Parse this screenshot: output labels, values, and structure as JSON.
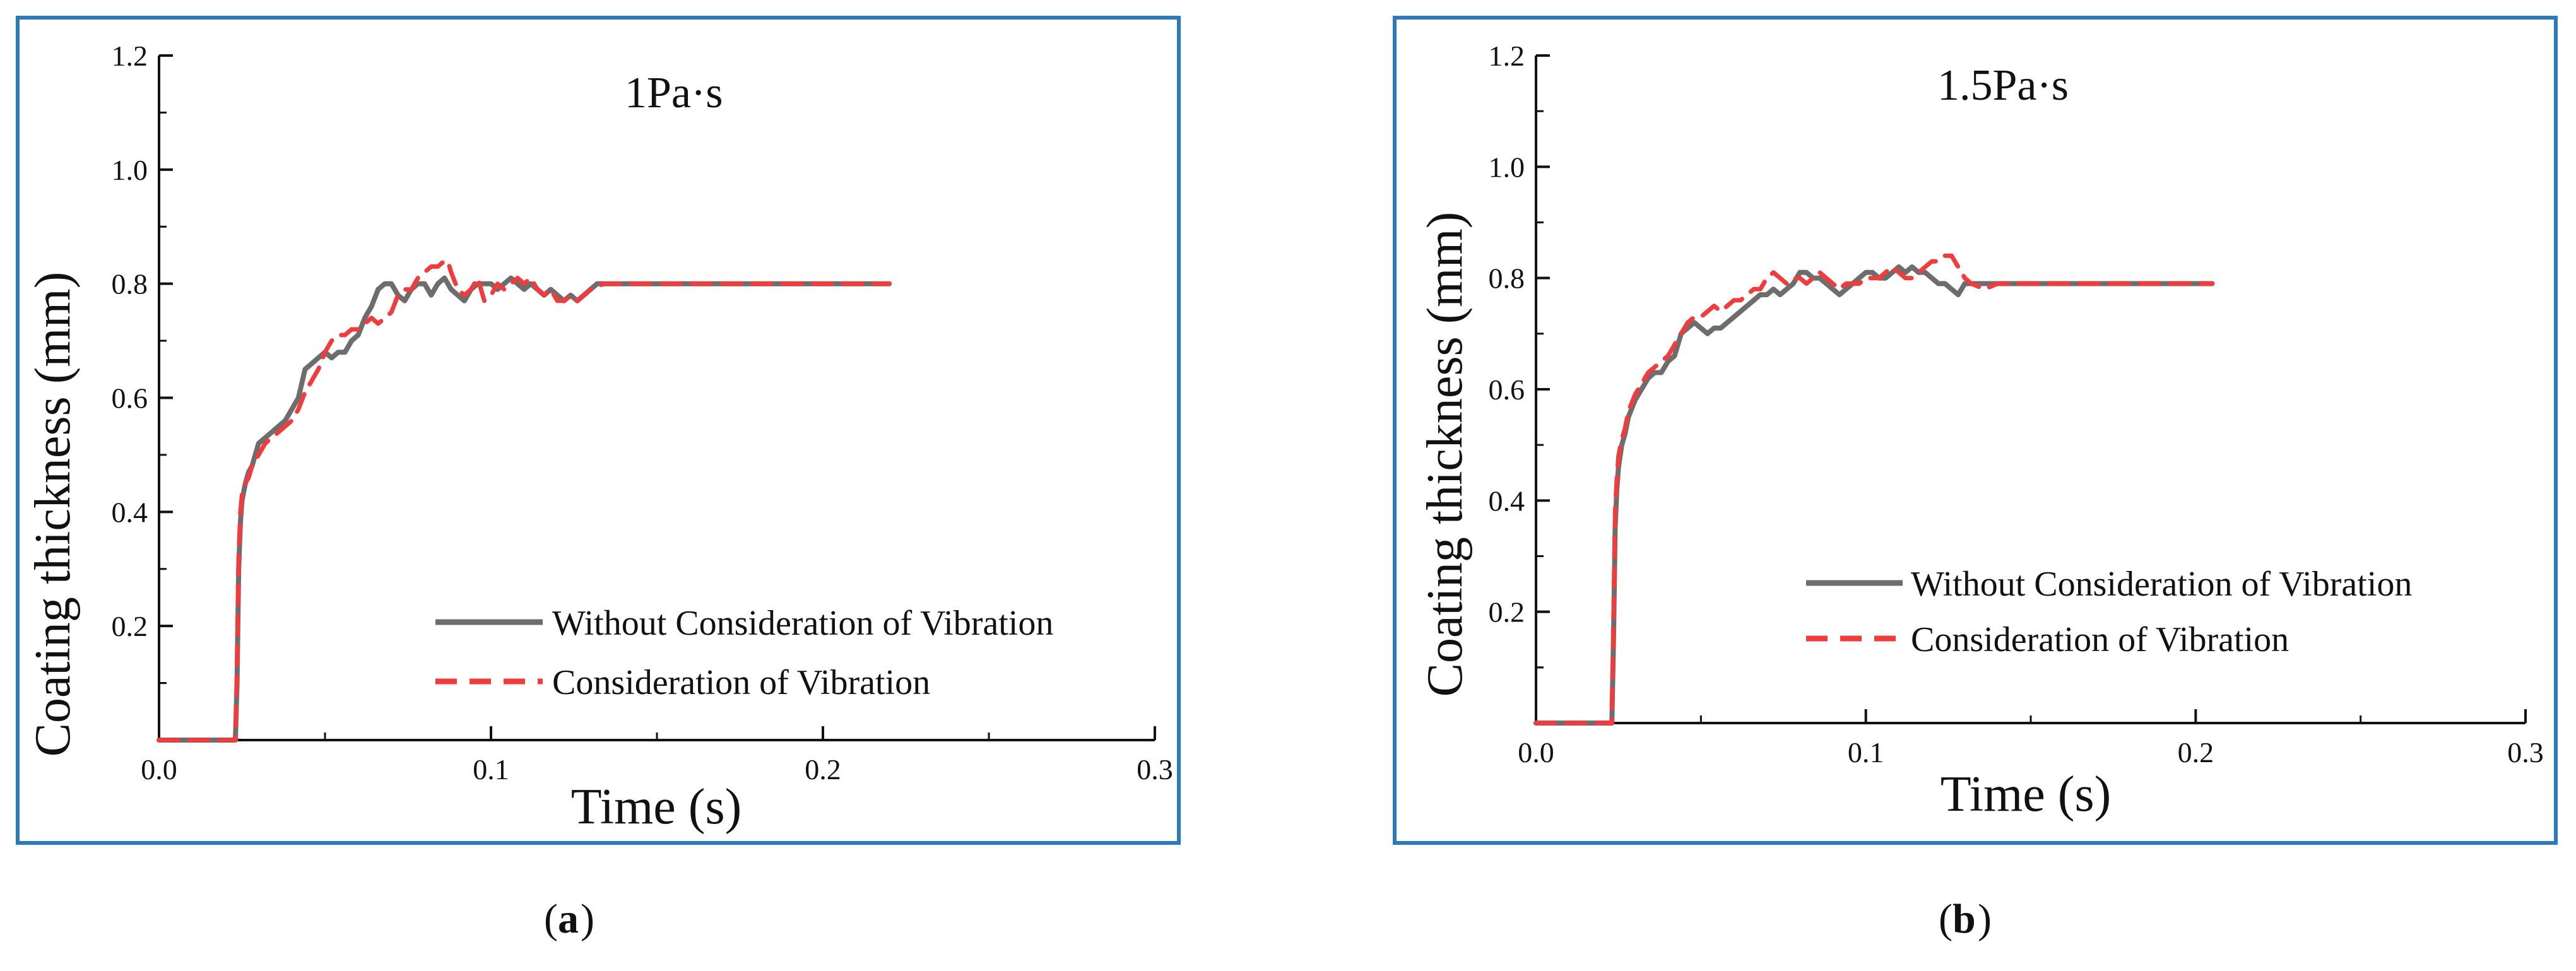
{
  "chart_data": [
    {
      "type": "line",
      "panel_label": "a",
      "title": "1Pa·s",
      "xlabel": "Time (s)",
      "ylabel": "Coating thickness (mm)",
      "xlim": [
        0,
        0.3
      ],
      "ylim": [
        0,
        1.2
      ],
      "xticks": [
        0.0,
        0.1,
        0.2,
        0.3
      ],
      "xtick_labels": [
        "0.0",
        "0.1",
        "0.2",
        "0.3"
      ],
      "yticks": [
        0.2,
        0.4,
        0.6,
        0.8,
        1.0,
        1.2
      ],
      "ytick_labels": [
        "0.2",
        "0.4",
        "0.6",
        "0.8",
        "1.0",
        "1.2"
      ],
      "grid": false,
      "legend_position": "bottom-right",
      "series": [
        {
          "name": "Without Consideration of Vibration",
          "color": "#6d6d6d",
          "style": "solid",
          "x": [
            0.0,
            0.023,
            0.0235,
            0.024,
            0.0245,
            0.025,
            0.026,
            0.027,
            0.028,
            0.029,
            0.03,
            0.032,
            0.034,
            0.036,
            0.038,
            0.04,
            0.042,
            0.044,
            0.046,
            0.048,
            0.05,
            0.052,
            0.054,
            0.056,
            0.058,
            0.06,
            0.062,
            0.064,
            0.066,
            0.068,
            0.07,
            0.072,
            0.074,
            0.076,
            0.078,
            0.08,
            0.082,
            0.084,
            0.086,
            0.088,
            0.09,
            0.092,
            0.094,
            0.096,
            0.098,
            0.1,
            0.102,
            0.104,
            0.106,
            0.108,
            0.11,
            0.112,
            0.114,
            0.116,
            0.118,
            0.12,
            0.122,
            0.124,
            0.126,
            0.128,
            0.13,
            0.132,
            0.134,
            0.136,
            0.14,
            0.145,
            0.15,
            0.16,
            0.17,
            0.18,
            0.19,
            0.2,
            0.21,
            0.22
          ],
          "y": [
            0.0,
            0.0,
            0.1,
            0.3,
            0.38,
            0.42,
            0.45,
            0.47,
            0.48,
            0.5,
            0.52,
            0.53,
            0.54,
            0.55,
            0.56,
            0.58,
            0.6,
            0.65,
            0.66,
            0.67,
            0.68,
            0.67,
            0.68,
            0.68,
            0.7,
            0.71,
            0.74,
            0.76,
            0.79,
            0.8,
            0.8,
            0.78,
            0.77,
            0.79,
            0.8,
            0.8,
            0.78,
            0.8,
            0.81,
            0.79,
            0.78,
            0.77,
            0.79,
            0.8,
            0.8,
            0.8,
            0.79,
            0.8,
            0.81,
            0.8,
            0.79,
            0.8,
            0.79,
            0.78,
            0.79,
            0.78,
            0.77,
            0.78,
            0.77,
            0.78,
            0.79,
            0.8,
            0.8,
            0.8,
            0.8,
            0.8,
            0.8,
            0.8,
            0.8,
            0.8,
            0.8,
            0.8,
            0.8,
            0.8
          ]
        },
        {
          "name": "Consideration of Vibration",
          "color": "#f03c3c",
          "style": "dashed",
          "x": [
            0.0,
            0.023,
            0.0235,
            0.024,
            0.0245,
            0.025,
            0.026,
            0.027,
            0.028,
            0.03,
            0.032,
            0.034,
            0.036,
            0.038,
            0.04,
            0.042,
            0.044,
            0.046,
            0.048,
            0.05,
            0.052,
            0.054,
            0.056,
            0.058,
            0.06,
            0.062,
            0.064,
            0.066,
            0.068,
            0.07,
            0.072,
            0.074,
            0.076,
            0.078,
            0.08,
            0.082,
            0.084,
            0.086,
            0.087,
            0.088,
            0.09,
            0.092,
            0.094,
            0.096,
            0.098,
            0.1,
            0.102,
            0.104,
            0.106,
            0.108,
            0.11,
            0.112,
            0.114,
            0.116,
            0.118,
            0.12,
            0.122,
            0.124,
            0.126,
            0.128,
            0.13,
            0.134,
            0.14,
            0.15,
            0.16,
            0.17,
            0.18,
            0.19,
            0.2,
            0.21,
            0.22
          ],
          "y": [
            0.0,
            0.0,
            0.12,
            0.32,
            0.4,
            0.43,
            0.45,
            0.46,
            0.48,
            0.5,
            0.52,
            0.53,
            0.54,
            0.55,
            0.56,
            0.58,
            0.61,
            0.63,
            0.65,
            0.68,
            0.7,
            0.71,
            0.71,
            0.72,
            0.72,
            0.73,
            0.74,
            0.73,
            0.74,
            0.75,
            0.78,
            0.79,
            0.79,
            0.81,
            0.82,
            0.83,
            0.83,
            0.84,
            0.84,
            0.82,
            0.79,
            0.78,
            0.79,
            0.81,
            0.77,
            0.78,
            0.8,
            0.79,
            0.8,
            0.81,
            0.8,
            0.81,
            0.79,
            0.78,
            0.79,
            0.77,
            0.77,
            0.78,
            0.77,
            0.78,
            0.79,
            0.8,
            0.8,
            0.8,
            0.8,
            0.8,
            0.8,
            0.8,
            0.8,
            0.8,
            0.8
          ]
        }
      ]
    },
    {
      "type": "line",
      "panel_label": "b",
      "title": "1.5Pa·s",
      "xlabel": "Time (s)",
      "ylabel": "Coating thickness (mm)",
      "xlim": [
        0,
        0.3
      ],
      "ylim": [
        0,
        1.2
      ],
      "xticks": [
        0.0,
        0.1,
        0.2,
        0.3
      ],
      "xtick_labels": [
        "0.0",
        "0.1",
        "0.2",
        "0.3"
      ],
      "yticks": [
        0.2,
        0.4,
        0.6,
        0.8,
        1.0,
        1.2
      ],
      "ytick_labels": [
        "0.2",
        "0.4",
        "0.6",
        "0.8",
        "1.0",
        "1.2"
      ],
      "grid": false,
      "legend_position": "right",
      "series": [
        {
          "name": "Without Consideration of Vibration",
          "color": "#6d6d6d",
          "style": "solid",
          "x": [
            0.0,
            0.023,
            0.0235,
            0.024,
            0.0245,
            0.025,
            0.026,
            0.027,
            0.028,
            0.03,
            0.032,
            0.034,
            0.036,
            0.038,
            0.04,
            0.042,
            0.044,
            0.046,
            0.048,
            0.05,
            0.052,
            0.054,
            0.056,
            0.058,
            0.06,
            0.062,
            0.064,
            0.066,
            0.068,
            0.07,
            0.072,
            0.074,
            0.076,
            0.078,
            0.08,
            0.082,
            0.084,
            0.086,
            0.088,
            0.09,
            0.092,
            0.094,
            0.096,
            0.098,
            0.1,
            0.102,
            0.104,
            0.106,
            0.108,
            0.11,
            0.112,
            0.114,
            0.116,
            0.118,
            0.12,
            0.122,
            0.124,
            0.126,
            0.128,
            0.13,
            0.134,
            0.14,
            0.15,
            0.16,
            0.17,
            0.18,
            0.19,
            0.2,
            0.205
          ],
          "y": [
            0.0,
            0.0,
            0.15,
            0.35,
            0.42,
            0.46,
            0.5,
            0.52,
            0.55,
            0.58,
            0.6,
            0.62,
            0.63,
            0.63,
            0.65,
            0.66,
            0.7,
            0.71,
            0.72,
            0.71,
            0.7,
            0.71,
            0.71,
            0.72,
            0.73,
            0.74,
            0.75,
            0.76,
            0.77,
            0.77,
            0.78,
            0.77,
            0.78,
            0.79,
            0.81,
            0.81,
            0.8,
            0.8,
            0.79,
            0.78,
            0.77,
            0.78,
            0.79,
            0.8,
            0.81,
            0.81,
            0.8,
            0.8,
            0.81,
            0.82,
            0.81,
            0.82,
            0.81,
            0.81,
            0.8,
            0.79,
            0.79,
            0.78,
            0.77,
            0.79,
            0.79,
            0.79,
            0.79,
            0.79,
            0.79,
            0.79,
            0.79,
            0.79,
            0.79
          ]
        },
        {
          "name": "Consideration of Vibration",
          "color": "#f03c3c",
          "style": "dashed",
          "x": [
            0.0,
            0.023,
            0.0235,
            0.024,
            0.0245,
            0.025,
            0.026,
            0.027,
            0.028,
            0.03,
            0.032,
            0.034,
            0.036,
            0.038,
            0.04,
            0.042,
            0.044,
            0.046,
            0.048,
            0.05,
            0.052,
            0.054,
            0.056,
            0.058,
            0.06,
            0.062,
            0.064,
            0.066,
            0.068,
            0.07,
            0.072,
            0.074,
            0.076,
            0.078,
            0.08,
            0.082,
            0.084,
            0.086,
            0.088,
            0.09,
            0.092,
            0.094,
            0.096,
            0.098,
            0.1,
            0.102,
            0.104,
            0.106,
            0.108,
            0.11,
            0.112,
            0.114,
            0.116,
            0.118,
            0.12,
            0.122,
            0.124,
            0.126,
            0.128,
            0.13,
            0.132,
            0.136,
            0.14,
            0.15,
            0.16,
            0.17,
            0.18,
            0.19,
            0.2,
            0.205
          ],
          "y": [
            0.0,
            0.0,
            0.18,
            0.38,
            0.44,
            0.48,
            0.51,
            0.53,
            0.56,
            0.59,
            0.61,
            0.63,
            0.64,
            0.65,
            0.66,
            0.68,
            0.7,
            0.72,
            0.73,
            0.73,
            0.74,
            0.75,
            0.74,
            0.75,
            0.76,
            0.76,
            0.77,
            0.78,
            0.78,
            0.8,
            0.81,
            0.8,
            0.79,
            0.8,
            0.8,
            0.79,
            0.8,
            0.81,
            0.8,
            0.79,
            0.78,
            0.79,
            0.79,
            0.79,
            0.8,
            0.8,
            0.8,
            0.81,
            0.82,
            0.81,
            0.8,
            0.8,
            0.81,
            0.82,
            0.83,
            0.83,
            0.84,
            0.84,
            0.82,
            0.8,
            0.79,
            0.78,
            0.79,
            0.79,
            0.79,
            0.79,
            0.79,
            0.79,
            0.79,
            0.79
          ]
        }
      ]
    }
  ]
}
